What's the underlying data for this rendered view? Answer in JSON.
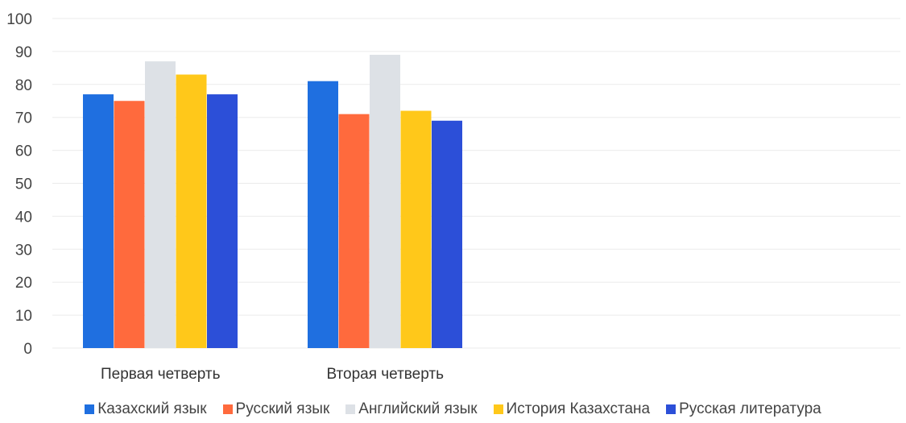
{
  "chart_data": {
    "type": "bar",
    "categories": [
      "Первая четверть",
      "Вторая четверть"
    ],
    "series": [
      {
        "name": "Казахский язык",
        "values": [
          77,
          81
        ],
        "color": "#1f6fe0"
      },
      {
        "name": "Русский язык",
        "values": [
          75,
          71
        ],
        "color": "#ff6a3d"
      },
      {
        "name": "Английский язык",
        "values": [
          87,
          89
        ],
        "color": "#dde1e6"
      },
      {
        "name": "История Казахстана",
        "values": [
          83,
          72
        ],
        "color": "#ffc81a"
      },
      {
        "name": "Русская литература",
        "values": [
          77,
          69
        ],
        "color": "#2c4fd8"
      }
    ],
    "ylim": [
      0,
      100
    ],
    "yticks": [
      "0",
      "10",
      "20",
      "30",
      "40",
      "50",
      "60",
      "70",
      "80",
      "90",
      "100"
    ],
    "grid": true,
    "legend_position": "bottom",
    "title": "",
    "xlabel": "",
    "ylabel": ""
  }
}
